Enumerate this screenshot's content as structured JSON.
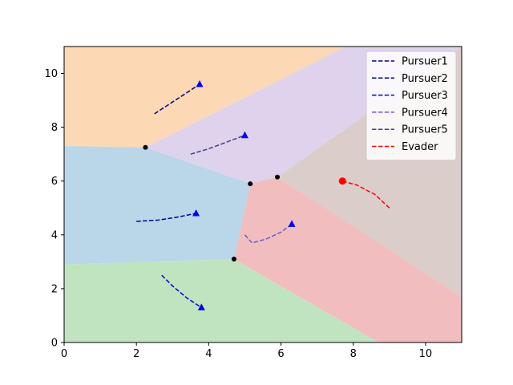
{
  "chart_data": {
    "type": "line",
    "title": "",
    "xlabel": "",
    "ylabel": "",
    "xlim": [
      0,
      11
    ],
    "ylim": [
      0,
      11
    ],
    "x_ticks": [
      0,
      2,
      4,
      6,
      8,
      10
    ],
    "y_ticks": [
      0,
      2,
      4,
      6,
      8,
      10
    ],
    "grid": false,
    "legend_position": "top-right",
    "regions": [
      {
        "color": "#fdd8b5",
        "points": [
          [
            0,
            11
          ],
          [
            7.8,
            11
          ],
          [
            2.25,
            7.25
          ],
          [
            0,
            7.3
          ]
        ]
      },
      {
        "color": "#dfd2ec",
        "points": [
          [
            7.8,
            11
          ],
          [
            8.3,
            11
          ],
          [
            11,
            11
          ],
          [
            5.9,
            6.15
          ],
          [
            5.15,
            5.9
          ],
          [
            2.25,
            7.25
          ]
        ]
      },
      {
        "color": "#dbcdc9",
        "points": [
          [
            11,
            11
          ],
          [
            11,
            1.7
          ],
          [
            5.9,
            6.15
          ]
        ]
      },
      {
        "color": "#f1bdbe",
        "points": [
          [
            5.9,
            6.15
          ],
          [
            11,
            1.7
          ],
          [
            11,
            0
          ],
          [
            8.7,
            0
          ],
          [
            4.7,
            3.1
          ],
          [
            5.15,
            5.9
          ]
        ]
      },
      {
        "color": "#bad6e9",
        "points": [
          [
            0,
            7.3
          ],
          [
            2.25,
            7.25
          ],
          [
            5.15,
            5.9
          ],
          [
            4.7,
            3.1
          ],
          [
            0,
            2.9
          ]
        ]
      },
      {
        "color": "#c1e4c0",
        "points": [
          [
            0,
            2.9
          ],
          [
            4.7,
            3.1
          ],
          [
            8.7,
            0
          ],
          [
            0,
            0
          ]
        ]
      }
    ],
    "vertices": [
      [
        2.25,
        7.25
      ],
      [
        5.15,
        5.9
      ],
      [
        5.9,
        6.15
      ],
      [
        4.7,
        3.1
      ]
    ],
    "series": [
      {
        "name": "Pursuer1",
        "color": "#00008b",
        "marker": "triangle",
        "points": [
          [
            2.5,
            8.5
          ],
          [
            2.9,
            8.85
          ],
          [
            3.3,
            9.2
          ],
          [
            3.75,
            9.6
          ]
        ]
      },
      {
        "name": "Pursuer2",
        "color": "#00008b",
        "marker": "triangle",
        "points": [
          [
            2.0,
            4.5
          ],
          [
            2.6,
            4.55
          ],
          [
            3.1,
            4.65
          ],
          [
            3.65,
            4.8
          ]
        ]
      },
      {
        "name": "Pursuer3",
        "color": "#0000cd",
        "marker": "triangle",
        "points": [
          [
            2.7,
            2.5
          ],
          [
            3.0,
            2.1
          ],
          [
            3.4,
            1.65
          ],
          [
            3.8,
            1.3
          ]
        ]
      },
      {
        "name": "Pursuer4",
        "color": "#6a5acd",
        "marker": "triangle",
        "points": [
          [
            5.0,
            4.0
          ],
          [
            5.2,
            3.7
          ],
          [
            5.6,
            3.85
          ],
          [
            6.0,
            4.1
          ],
          [
            6.3,
            4.4
          ]
        ]
      },
      {
        "name": "Pursuer5",
        "color": "#483d8b",
        "marker": "triangle",
        "points": [
          [
            3.5,
            7.0
          ],
          [
            4.0,
            7.2
          ],
          [
            4.5,
            7.45
          ],
          [
            5.0,
            7.7
          ]
        ]
      },
      {
        "name": "Evader",
        "color": "#ff0000",
        "marker": "circle",
        "points": [
          [
            9.0,
            5.0
          ],
          [
            8.6,
            5.5
          ],
          [
            8.1,
            5.85
          ],
          [
            7.7,
            6.0
          ]
        ]
      }
    ]
  }
}
